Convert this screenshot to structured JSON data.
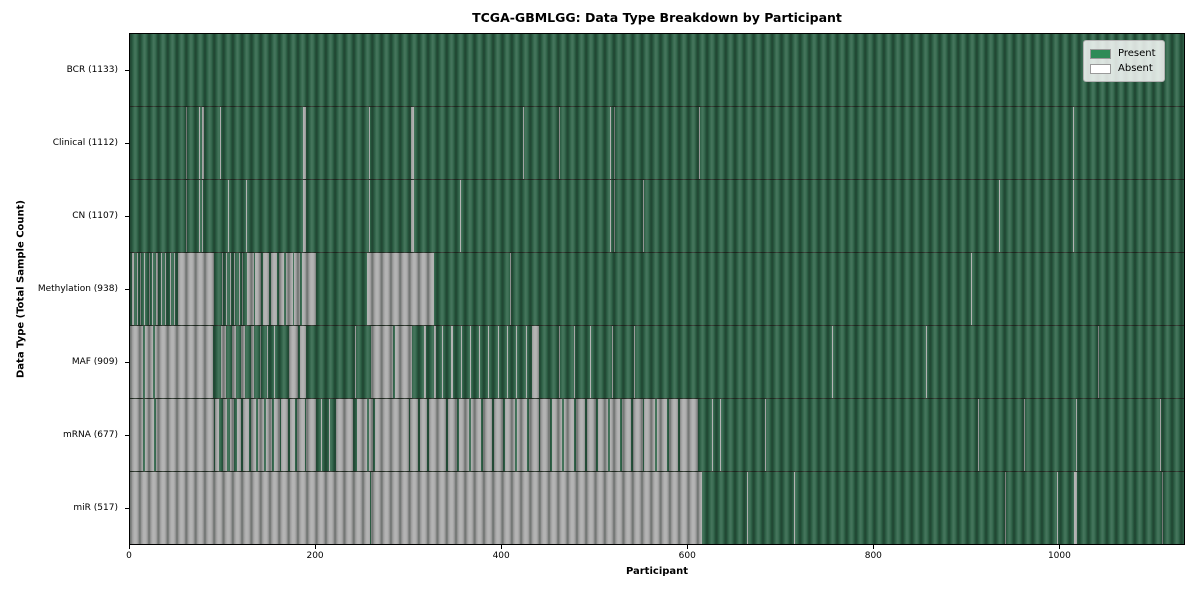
{
  "figure": {
    "title": "TCGA-GBMLGG: Data Type Breakdown by Participant",
    "xlabel": "Participant",
    "ylabel": "Data Type (Total Sample Count)"
  },
  "legend": {
    "items": [
      {
        "label": "Present",
        "color": "#2e8b57"
      },
      {
        "label": "Absent",
        "color": "#ffffff"
      }
    ]
  },
  "colors": {
    "present_fill": "#2d6347",
    "absent_fill": "#ababab",
    "frame": "#000000"
  },
  "chart_data": {
    "type": "heatmap",
    "title": "TCGA-GBMLGG: Data Type Breakdown by Participant",
    "xlabel": "Participant",
    "ylabel": "Data Type (Total Sample Count)",
    "legend": [
      "Present",
      "Absent"
    ],
    "legend_position": "upper right",
    "x_ticks": [
      0,
      200,
      400,
      600,
      800,
      1000
    ],
    "x_max": 1135,
    "cell_states": {
      "present": "green",
      "absent": "white/gray"
    },
    "rows": [
      {
        "name": "BCR",
        "label": "BCR (1133)",
        "present_count": 1133,
        "absent_segments": []
      },
      {
        "name": "Clinical",
        "label": "Clinical (1112)",
        "present_count": 1112,
        "absent_segments": [
          [
            60,
            61
          ],
          [
            74,
            75
          ],
          [
            77,
            78
          ],
          [
            79,
            80
          ],
          [
            97,
            98
          ],
          [
            186,
            189
          ],
          [
            257,
            258
          ],
          [
            303,
            306
          ],
          [
            423,
            424
          ],
          [
            462,
            463
          ],
          [
            517,
            518
          ],
          [
            521,
            522
          ],
          [
            613,
            614
          ],
          [
            1016,
            1017
          ]
        ]
      },
      {
        "name": "CN",
        "label": "CN (1107)",
        "present_count": 1107,
        "absent_segments": [
          [
            60,
            61
          ],
          [
            74,
            75
          ],
          [
            78,
            79
          ],
          [
            106,
            107
          ],
          [
            125,
            126
          ],
          [
            186,
            189
          ],
          [
            257,
            258
          ],
          [
            303,
            306
          ],
          [
            355,
            356
          ],
          [
            517,
            518
          ],
          [
            521,
            522
          ],
          [
            552,
            553
          ],
          [
            936,
            937
          ],
          [
            1016,
            1017
          ]
        ]
      },
      {
        "name": "Methylation",
        "label": "Methylation (938)",
        "present_count": 938,
        "absent_segments": [
          [
            2,
            4
          ],
          [
            7,
            8
          ],
          [
            11,
            12
          ],
          [
            15,
            16
          ],
          [
            20,
            21
          ],
          [
            24,
            25
          ],
          [
            28,
            30
          ],
          [
            33,
            34
          ],
          [
            38,
            39
          ],
          [
            43,
            44
          ],
          [
            47,
            48
          ],
          [
            52,
            91
          ],
          [
            99,
            100
          ],
          [
            103,
            104
          ],
          [
            108,
            109
          ],
          [
            112,
            113
          ],
          [
            117,
            118
          ],
          [
            121,
            122
          ],
          [
            126,
            133
          ],
          [
            135,
            141
          ],
          [
            143,
            150
          ],
          [
            152,
            158
          ],
          [
            160,
            166
          ],
          [
            168,
            175
          ],
          [
            177,
            183
          ],
          [
            185,
            200
          ],
          [
            255,
            327
          ],
          [
            409,
            410
          ],
          [
            906,
            907
          ]
        ]
      },
      {
        "name": "MAF",
        "label": "MAF (909)",
        "present_count": 909,
        "absent_segments": [
          [
            0,
            14
          ],
          [
            16,
            25
          ],
          [
            27,
            89
          ],
          [
            98,
            103
          ],
          [
            110,
            114
          ],
          [
            120,
            124
          ],
          [
            130,
            134
          ],
          [
            140,
            141
          ],
          [
            147,
            148
          ],
          [
            155,
            156
          ],
          [
            171,
            181
          ],
          [
            183,
            190
          ],
          [
            242,
            243
          ],
          [
            260,
            283
          ],
          [
            285,
            304
          ],
          [
            317,
            319
          ],
          [
            327,
            329
          ],
          [
            336,
            337
          ],
          [
            346,
            348
          ],
          [
            356,
            357
          ],
          [
            366,
            367
          ],
          [
            376,
            377
          ],
          [
            386,
            387
          ],
          [
            396,
            397
          ],
          [
            406,
            407
          ],
          [
            416,
            417
          ],
          [
            426,
            427
          ],
          [
            433,
            440
          ],
          [
            462,
            463
          ],
          [
            478,
            479
          ],
          [
            495,
            496
          ],
          [
            519,
            520
          ],
          [
            543,
            544
          ],
          [
            756,
            757
          ],
          [
            857,
            858
          ],
          [
            1042,
            1043
          ]
        ]
      },
      {
        "name": "mRNA",
        "label": "mRNA (677)",
        "present_count": 677,
        "absent_segments": [
          [
            0,
            14
          ],
          [
            16,
            26
          ],
          [
            28,
            90
          ],
          [
            92,
            96
          ],
          [
            100,
            104
          ],
          [
            108,
            112
          ],
          [
            115,
            120
          ],
          [
            122,
            128
          ],
          [
            130,
            136
          ],
          [
            138,
            144
          ],
          [
            146,
            153
          ],
          [
            155,
            161
          ],
          [
            163,
            170
          ],
          [
            172,
            178
          ],
          [
            180,
            188
          ],
          [
            190,
            200
          ],
          [
            206,
            207
          ],
          [
            214,
            215
          ],
          [
            222,
            240
          ],
          [
            244,
            255
          ],
          [
            257,
            262
          ],
          [
            264,
            300
          ],
          [
            302,
            310
          ],
          [
            312,
            320
          ],
          [
            322,
            340
          ],
          [
            342,
            352
          ],
          [
            354,
            365
          ],
          [
            367,
            378
          ],
          [
            380,
            390
          ],
          [
            392,
            402
          ],
          [
            404,
            415
          ],
          [
            417,
            428
          ],
          [
            430,
            440
          ],
          [
            442,
            452
          ],
          [
            454,
            465
          ],
          [
            467,
            478
          ],
          [
            480,
            490
          ],
          [
            492,
            502
          ],
          [
            504,
            515
          ],
          [
            517,
            528
          ],
          [
            530,
            540
          ],
          [
            542,
            552
          ],
          [
            554,
            565
          ],
          [
            567,
            578
          ],
          [
            580,
            590
          ],
          [
            592,
            612
          ],
          [
            627,
            628
          ],
          [
            635,
            636
          ],
          [
            684,
            685
          ],
          [
            913,
            914
          ],
          [
            963,
            964
          ],
          [
            1019,
            1020
          ],
          [
            1109,
            1110
          ]
        ]
      },
      {
        "name": "miR",
        "label": "miR (517)",
        "present_count": 517,
        "absent_segments": [
          [
            0,
            189
          ],
          [
            190,
            258
          ],
          [
            259,
            616
          ],
          [
            664,
            665
          ],
          [
            715,
            716
          ],
          [
            942,
            943
          ],
          [
            998,
            999
          ],
          [
            1017,
            1020
          ],
          [
            1111,
            1112
          ]
        ]
      }
    ]
  }
}
